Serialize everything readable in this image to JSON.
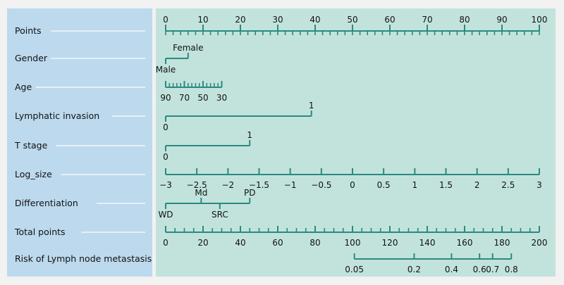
{
  "colors": {
    "label_panel": "#bcd9ee",
    "plot_panel": "#c2e3dc",
    "axis": "#2a8a80",
    "leader": "#ffffff",
    "page": "#f2f2f2"
  },
  "chart_data": {
    "type": "nomogram",
    "title": "",
    "points_range": [
      0,
      100
    ],
    "rows": [
      {
        "name": "Points",
        "kind": "continuous",
        "points": [
          0,
          100
        ],
        "major": [
          {
            "label": "0",
            "pt": 0
          },
          {
            "label": "10",
            "pt": 10
          },
          {
            "label": "20",
            "pt": 20
          },
          {
            "label": "30",
            "pt": 30
          },
          {
            "label": "40",
            "pt": 40
          },
          {
            "label": "50",
            "pt": 50
          },
          {
            "label": "60",
            "pt": 60
          },
          {
            "label": "70",
            "pt": 70
          },
          {
            "label": "80",
            "pt": 80
          },
          {
            "label": "90",
            "pt": 90
          },
          {
            "label": "100",
            "pt": 100
          }
        ],
        "minor_step": 2,
        "label_side": "above"
      },
      {
        "name": "Gender",
        "kind": "categorical",
        "points": [
          0,
          6
        ],
        "levels": [
          {
            "label": "Male",
            "pt": 0,
            "side": "below"
          },
          {
            "label": "Female",
            "pt": 6,
            "side": "above"
          }
        ]
      },
      {
        "name": "Age",
        "kind": "continuous",
        "points": [
          0,
          15
        ],
        "major": [
          {
            "label": "90",
            "pt": 0
          },
          {
            "label": "70",
            "pt": 5
          },
          {
            "label": "50",
            "pt": 10
          },
          {
            "label": "30",
            "pt": 15
          }
        ],
        "minor_step": 1,
        "label_side": "below"
      },
      {
        "name": "Lymphatic invasion",
        "kind": "categorical",
        "points": [
          0,
          39
        ],
        "levels": [
          {
            "label": "0",
            "pt": 0,
            "side": "below"
          },
          {
            "label": "1",
            "pt": 39,
            "side": "above"
          }
        ]
      },
      {
        "name": "T stage",
        "kind": "categorical",
        "points": [
          0,
          22.5
        ],
        "levels": [
          {
            "label": "0",
            "pt": 0,
            "side": "below"
          },
          {
            "label": "1",
            "pt": 22.5,
            "side": "above"
          }
        ]
      },
      {
        "name": "Log_size",
        "kind": "continuous",
        "points": [
          0,
          100
        ],
        "major": [
          {
            "label": "−3",
            "pt": 0
          },
          {
            "label": "−2.5",
            "pt": 8.33
          },
          {
            "label": "−2",
            "pt": 16.67
          },
          {
            "label": "−1.5",
            "pt": 25
          },
          {
            "label": "−1",
            "pt": 33.33
          },
          {
            "label": "−0.5",
            "pt": 41.67
          },
          {
            "label": "0",
            "pt": 50
          },
          {
            "label": "0.5",
            "pt": 58.33
          },
          {
            "label": "1",
            "pt": 66.67
          },
          {
            "label": "1.5",
            "pt": 75
          },
          {
            "label": "2",
            "pt": 83.33
          },
          {
            "label": "2.5",
            "pt": 91.67
          },
          {
            "label": "3",
            "pt": 100
          }
        ],
        "minor_step": null,
        "label_side": "below"
      },
      {
        "name": "Differentiation",
        "kind": "categorical",
        "points": [
          0,
          22.5
        ],
        "levels": [
          {
            "label": "WD",
            "pt": 0,
            "side": "below"
          },
          {
            "label": "Md",
            "pt": 9.5,
            "side": "above"
          },
          {
            "label": "SRC",
            "pt": 14.5,
            "side": "below"
          },
          {
            "label": "PD",
            "pt": 22.5,
            "side": "above"
          }
        ]
      },
      {
        "name": "Total points",
        "kind": "continuous",
        "total_range": [
          0,
          200
        ],
        "major": [
          {
            "label": "0",
            "total": 0
          },
          {
            "label": "20",
            "total": 20
          },
          {
            "label": "40",
            "total": 40
          },
          {
            "label": "60",
            "total": 60
          },
          {
            "label": "80",
            "total": 80
          },
          {
            "label": "100",
            "total": 100
          },
          {
            "label": "120",
            "total": 120
          },
          {
            "label": "140",
            "total": 140
          },
          {
            "label": "160",
            "total": 160
          },
          {
            "label": "180",
            "total": 180
          },
          {
            "label": "200",
            "total": 200
          }
        ],
        "minor_step": 5,
        "label_side": "below"
      },
      {
        "name": "Risk of Lymph node metastasis",
        "kind": "risk",
        "total_range": [
          0,
          200
        ],
        "major": [
          {
            "label": "0.05",
            "total": 101
          },
          {
            "label": "0.2",
            "total": 133
          },
          {
            "label": "0.4",
            "total": 153
          },
          {
            "label": "0.6",
            "total": 168
          },
          {
            "label": "0.7",
            "total": 175
          },
          {
            "label": "0.8",
            "total": 185
          }
        ],
        "label_side": "below"
      }
    ]
  }
}
